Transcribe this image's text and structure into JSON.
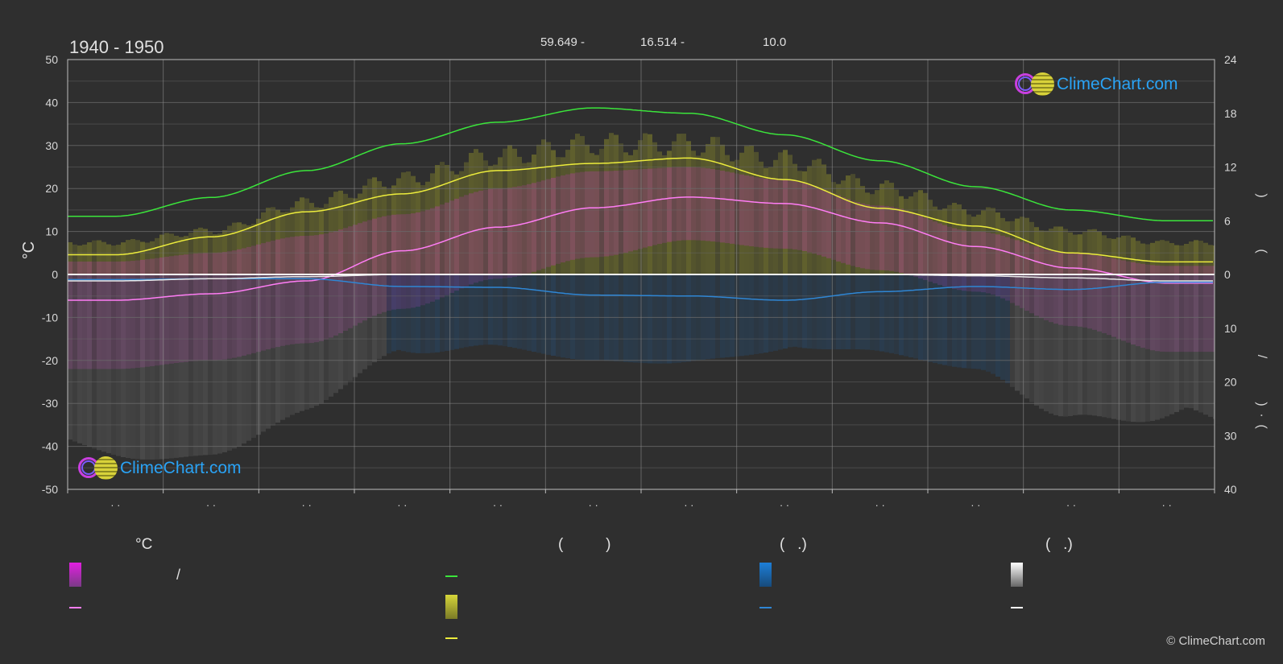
{
  "header": {
    "period": "1940 - 1950",
    "coords": [
      "59.649 -",
      "16.514 -",
      "10.0"
    ]
  },
  "branding": {
    "name": "ClimeChart.com",
    "copyright": "© ClimeChart.com"
  },
  "chart_data": {
    "type": "line",
    "title": "1940 - 1950",
    "y_left": {
      "label": "°C",
      "min": -50,
      "max": 50,
      "ticks": [
        "50",
        "40",
        "30",
        "20",
        "10",
        "0",
        "-10",
        "-20",
        "-30",
        "-40",
        "-50"
      ]
    },
    "y_right_upper": {
      "min": 0,
      "max": 24,
      "ticks": [
        "24",
        "18",
        "12",
        "6",
        "0"
      ],
      "label_glyphs": [
        ")",
        "("
      ]
    },
    "y_right_lower": {
      "min": 0,
      "max": 40,
      "ticks": [
        "10",
        "20",
        "30",
        "40"
      ],
      "label_glyphs": [
        "/",
        ")",
        "·",
        "("
      ]
    },
    "x_tick_labels": [
      "· ·",
      "· ·",
      "· ·",
      "· ·",
      "· ·",
      "· ·",
      "· ·",
      "· ·",
      "· ·",
      "· ·",
      "· ·",
      "· ·"
    ],
    "months": [
      1,
      2,
      3,
      4,
      5,
      6,
      7,
      8,
      9,
      10,
      11,
      12
    ],
    "grid": true,
    "series": [
      {
        "key": "daylight",
        "color": "#3be53b",
        "axis": "right_upper",
        "values": [
          6.5,
          8.6,
          11.6,
          14.6,
          17.0,
          18.6,
          18.0,
          15.6,
          12.7,
          9.8,
          7.2,
          6.0
        ]
      },
      {
        "key": "sunshine",
        "color": "#ecec3c",
        "axis": "right_upper",
        "values": [
          2.2,
          4.2,
          7.0,
          9.0,
          11.6,
          12.4,
          13.0,
          10.6,
          7.4,
          5.4,
          2.4,
          1.4
        ]
      },
      {
        "key": "mean_temp",
        "color": "#ff7df5",
        "axis": "left",
        "values": [
          -6.0,
          -4.5,
          -1.5,
          5.5,
          11.0,
          15.5,
          18.0,
          16.5,
          12.0,
          6.5,
          1.5,
          -2.0
        ]
      },
      {
        "key": "rain",
        "color": "#2f86d4",
        "axis": "right_lower",
        "values": [
          -1.2,
          -1.0,
          -1.0,
          -2.8,
          -3.0,
          -4.8,
          -5.0,
          -6.0,
          -4.0,
          -2.8,
          -3.5,
          -1.8
        ]
      },
      {
        "key": "snow",
        "color": "#e8e8e8",
        "axis": "right_lower",
        "values": [
          -1.5,
          -1.0,
          -0.5,
          0,
          0,
          0,
          0,
          0,
          0,
          -0.3,
          -0.8,
          -1.5
        ]
      }
    ],
    "bands": {
      "sunshine_top": [
        8,
        11,
        18,
        24,
        30,
        33,
        33,
        29,
        22,
        16,
        11,
        8
      ],
      "temp_max": [
        3,
        5,
        9,
        14,
        20,
        24,
        25,
        22,
        16,
        10,
        5,
        2
      ],
      "temp_min": [
        -22,
        -20,
        -16,
        -8,
        -1,
        4,
        8,
        6,
        1,
        -4,
        -12,
        -18
      ],
      "precip_depth": [
        -45,
        -42,
        -35,
        -25,
        -18,
        -20,
        -22,
        -24,
        -20,
        -22,
        -35,
        -44
      ]
    }
  },
  "legend": {
    "headings": [
      "°C",
      "(          )",
      "(   .)",
      "(   .)"
    ],
    "items": [
      {
        "text": "/"
      }
    ],
    "colors": {
      "temp_range": "#e21fe0",
      "mean_temp": "#ff7df5",
      "daylight": "#3be53b",
      "sunshine_range": "#d6d63a",
      "sunshine_line": "#ecec3c",
      "rain": "#1d7fd8",
      "rain_line": "#2f86d4",
      "snow": "#e8e8e8",
      "snow_line": "#ffffff"
    }
  }
}
